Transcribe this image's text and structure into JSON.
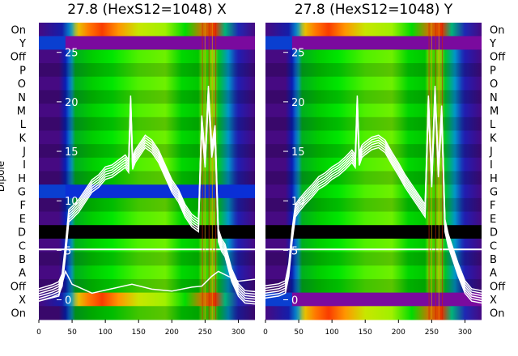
{
  "chart_data": [
    {
      "type": "heatmap",
      "title": "27.8 (HexS12=1048) X",
      "xlabel": "",
      "ylabel": "Dipole",
      "xlim": [
        0,
        325
      ],
      "xticks": [
        0,
        50,
        100,
        150,
        200,
        250,
        300
      ],
      "row_labels": [
        "On",
        "Y",
        "Off",
        "P",
        "O",
        "N",
        "M",
        "L",
        "K",
        "J",
        "I",
        "H",
        "G",
        "F",
        "E",
        "D",
        "C",
        "B",
        "A",
        "Off",
        "X",
        "On"
      ],
      "overlay_ylim": [
        -2,
        28
      ],
      "overlay_yticks": [
        0,
        5,
        10,
        15,
        20,
        25
      ],
      "colormap": "nipy_spectral",
      "overlay_color": "#ffffff",
      "black_band_rows": [
        "D"
      ],
      "white_line_rows": [
        "C"
      ],
      "band_row_colors": {
        "Y": "#7a0a9e",
        "G": "#0a2fd6"
      },
      "series": [
        {
          "name": "",
          "x": [
            0,
            10,
            20,
            30,
            35,
            40,
            45,
            50,
            60,
            70,
            80,
            90,
            100,
            110,
            120,
            130,
            135,
            138,
            141,
            145,
            150,
            160,
            170,
            180,
            190,
            200,
            210,
            220,
            230,
            240,
            245,
            250,
            255,
            260,
            265,
            270,
            275,
            280,
            290,
            300,
            310,
            325
          ],
          "y": [
            0.5,
            0.7,
            0.9,
            1.2,
            2,
            5,
            8.5,
            8.8,
            9.5,
            10.5,
            11.5,
            12,
            12.8,
            13,
            13.5,
            14,
            13.5,
            20,
            13.8,
            14.5,
            15,
            16,
            15.5,
            14.5,
            13,
            11.5,
            10.5,
            9,
            8,
            7.5,
            18,
            14,
            21,
            15,
            17,
            6.5,
            5.5,
            5,
            2.5,
            1,
            0.3,
            0.2
          ]
        },
        {
          "name": "",
          "x": [
            0,
            30,
            40,
            50,
            80,
            100,
            140,
            170,
            200,
            230,
            245,
            260,
            270,
            285,
            300,
            325
          ],
          "y": [
            0.5,
            1,
            3.5,
            2.2,
            1.3,
            1.6,
            2.2,
            1.7,
            1.5,
            1.9,
            2,
            3,
            3.5,
            3,
            2.5,
            2.7
          ]
        }
      ]
    },
    {
      "type": "heatmap",
      "title": "27.8 (HexS12=1048) Y",
      "xlabel": "",
      "ylabel": "",
      "xlim": [
        0,
        325
      ],
      "xticks": [
        0,
        50,
        100,
        150,
        200,
        250,
        300
      ],
      "row_labels": [
        "On",
        "Y",
        "Off",
        "P",
        "O",
        "N",
        "M",
        "L",
        "K",
        "J",
        "I",
        "H",
        "G",
        "F",
        "E",
        "D",
        "C",
        "B",
        "A",
        "Off",
        "X",
        "On"
      ],
      "overlay_ylim": [
        -2,
        28
      ],
      "overlay_yticks": [
        0,
        5,
        10,
        15,
        20,
        25
      ],
      "colormap": "nipy_spectral",
      "overlay_color": "#ffffff",
      "black_band_rows": [
        "D"
      ],
      "white_line_rows": [
        "C"
      ],
      "band_row_colors": {
        "Y": "#7a0a9e",
        "X": "#7a0a9e"
      },
      "series": [
        {
          "name": "",
          "x": [
            0,
            20,
            30,
            35,
            40,
            45,
            50,
            60,
            70,
            80,
            90,
            100,
            110,
            120,
            130,
            135,
            138,
            141,
            145,
            150,
            160,
            170,
            180,
            190,
            200,
            210,
            220,
            230,
            240,
            245,
            250,
            255,
            260,
            265,
            270,
            275,
            280,
            290,
            300,
            310,
            325
          ],
          "y": [
            0.8,
            1.0,
            1.3,
            3,
            6.5,
            9,
            9.5,
            10.3,
            11,
            11.8,
            12.2,
            12.8,
            13.2,
            13.8,
            14.5,
            14,
            20,
            14.2,
            15,
            15.3,
            15.8,
            16,
            15.5,
            14.3,
            13.2,
            12,
            11,
            10,
            9,
            20,
            12,
            21,
            13,
            19,
            7.5,
            6,
            5,
            3,
            1.3,
            0.5,
            0.3
          ]
        }
      ]
    }
  ]
}
